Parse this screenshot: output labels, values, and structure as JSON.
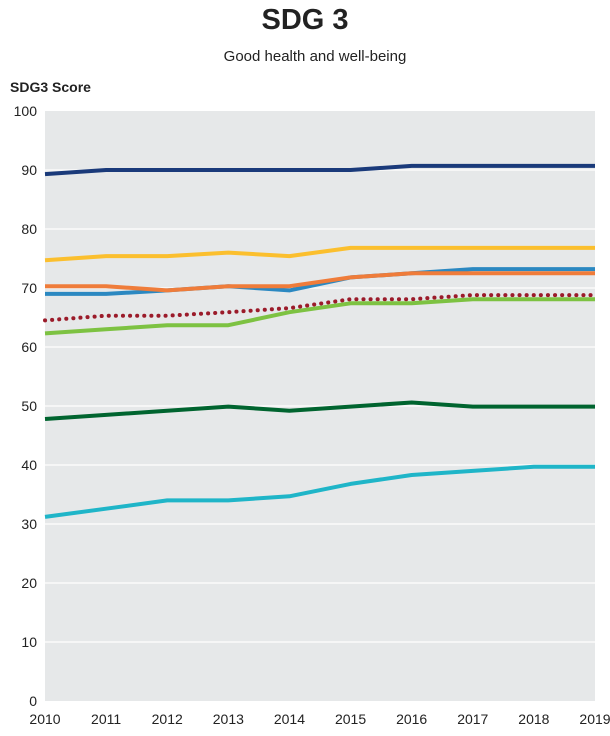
{
  "chart_data": {
    "type": "line",
    "title": "SDG 3",
    "subtitle": "Good health and well-being",
    "ylabel": "SDG3 Score",
    "xlabel": "",
    "x": [
      2010,
      2011,
      2012,
      2013,
      2014,
      2015,
      2016,
      2017,
      2018,
      2019
    ],
    "ylim": [
      0,
      100
    ],
    "yticks": [
      0,
      10,
      20,
      30,
      40,
      50,
      60,
      70,
      80,
      90,
      100
    ],
    "grid": true,
    "legend": "none",
    "series": [
      {
        "color": "#1a3a7a",
        "style": "solid",
        "values": [
          89.3,
          90.0,
          90.0,
          90.0,
          90.0,
          90.0,
          90.7,
          90.7,
          90.7,
          90.7
        ]
      },
      {
        "color": "#fbbf2e",
        "style": "solid",
        "values": [
          74.7,
          75.4,
          75.4,
          76.0,
          75.4,
          76.8,
          76.8,
          76.8,
          76.8,
          76.8
        ]
      },
      {
        "color": "#2b88c1",
        "style": "solid",
        "values": [
          69.0,
          69.0,
          69.6,
          70.3,
          69.6,
          71.8,
          72.5,
          73.2,
          73.2,
          73.2
        ]
      },
      {
        "color": "#ef7c3a",
        "style": "solid",
        "values": [
          70.3,
          70.3,
          69.6,
          70.3,
          70.3,
          71.8,
          72.5,
          72.5,
          72.5,
          72.5
        ]
      },
      {
        "color": "#9b1b2a",
        "style": "dotted",
        "values": [
          64.5,
          65.3,
          65.3,
          65.9,
          66.6,
          68.1,
          68.1,
          68.8,
          68.8,
          68.8
        ]
      },
      {
        "color": "#7dc242",
        "style": "solid",
        "values": [
          62.3,
          63.0,
          63.7,
          63.7,
          65.9,
          67.4,
          67.4,
          68.1,
          68.1,
          68.1
        ]
      },
      {
        "color": "#00642f",
        "style": "solid",
        "values": [
          47.8,
          48.5,
          49.2,
          49.9,
          49.2,
          49.9,
          50.6,
          49.9,
          49.9,
          49.9
        ]
      },
      {
        "color": "#1fb5c8",
        "style": "solid",
        "values": [
          31.2,
          32.6,
          34.0,
          34.0,
          34.7,
          36.8,
          38.3,
          39.0,
          39.7,
          39.7
        ]
      }
    ]
  }
}
